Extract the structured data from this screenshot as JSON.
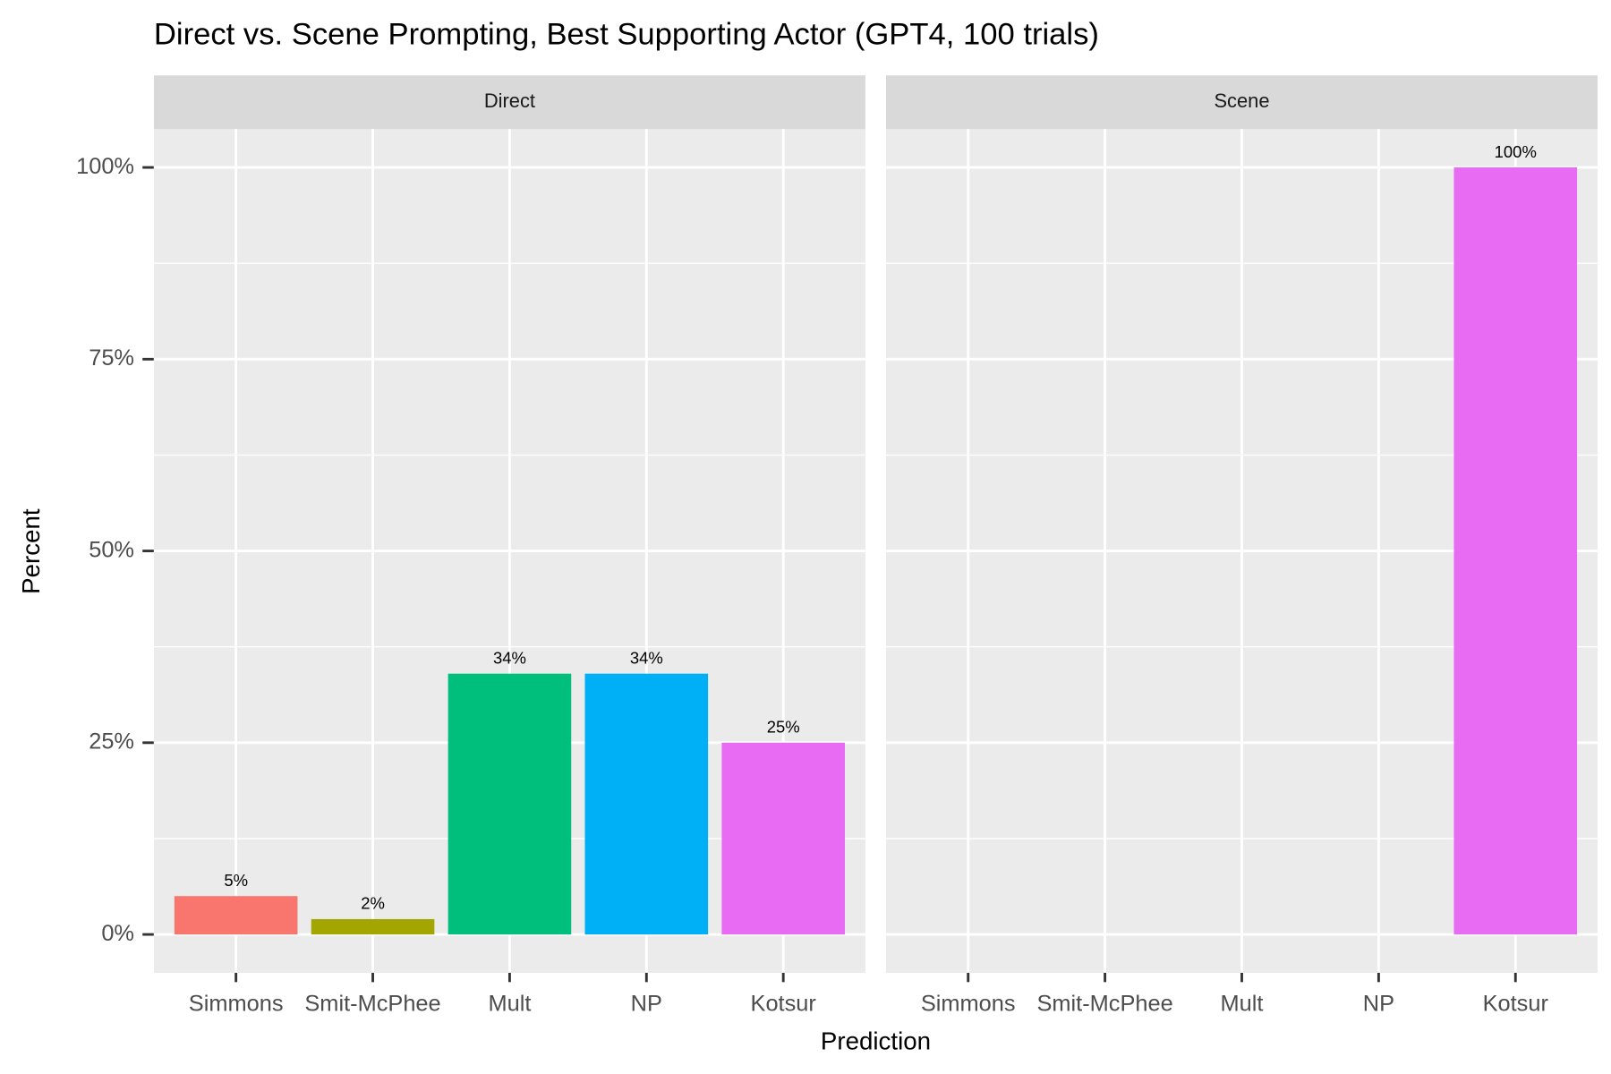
{
  "chart_data": {
    "type": "bar",
    "title": "Direct vs. Scene Prompting, Best Supporting Actor (GPT4, 100 trials)",
    "x_label": "Prediction",
    "y_label": "Percent",
    "categories": [
      "Simmons",
      "Smit-McPhee",
      "Mult",
      "NP",
      "Kotsur"
    ],
    "colors": [
      "#f8766d",
      "#a3a500",
      "#00bf7d",
      "#00b0f6",
      "#e76bf3"
    ],
    "ylim": [
      -5,
      105
    ],
    "yticks": [
      {
        "value": 0,
        "label": "0%"
      },
      {
        "value": 25,
        "label": "25%"
      },
      {
        "value": 50,
        "label": "50%"
      },
      {
        "value": 75,
        "label": "75%"
      },
      {
        "value": 100,
        "label": "100%"
      }
    ],
    "grid": true,
    "panels": [
      {
        "name": "Direct",
        "values": [
          5,
          2,
          34,
          34,
          25
        ],
        "value_labels": [
          "5%",
          "2%",
          "34%",
          "34%",
          "25%"
        ]
      },
      {
        "name": "Scene",
        "values": [
          null,
          null,
          null,
          null,
          100
        ],
        "value_labels": [
          null,
          null,
          null,
          null,
          "100%"
        ]
      }
    ]
  }
}
